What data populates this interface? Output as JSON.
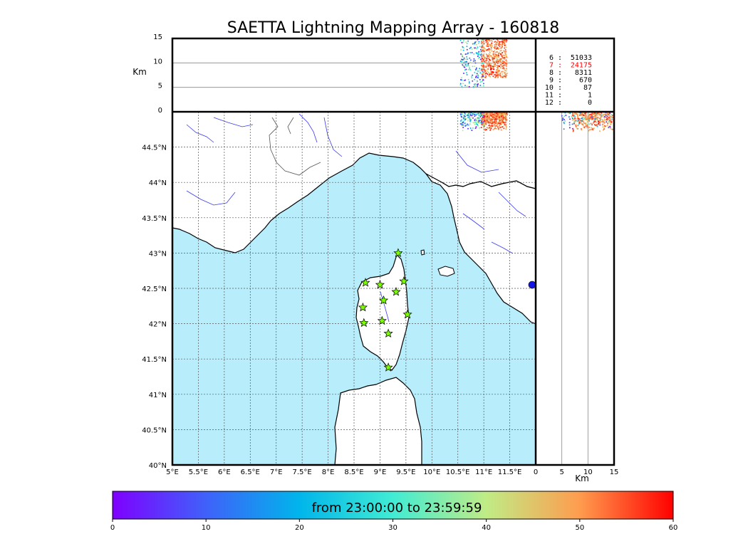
{
  "title": "SAETTA Lightning Mapping Array - 160818",
  "colors": {
    "sea": "#b8eefb",
    "land": "#ffffff",
    "coast": "#000000",
    "rivers": "#3a3af0",
    "borders": "#555555",
    "stations": "#7cfc00",
    "grid": "#555555"
  },
  "colorbar": {
    "label": "from 23:00:00 to 23:59:59",
    "ticks": [
      "0",
      "10",
      "20",
      "30",
      "40",
      "50",
      "60"
    ],
    "colors": [
      "#7f00ff",
      "#3f61fa",
      "#00b5eb",
      "#40ecd4",
      "#c0ec86",
      "#ff9c4e",
      "#ff0000"
    ]
  },
  "counts": [
    {
      "label": "6 :",
      "value": "51033",
      "color": "#000000"
    },
    {
      "label": "7 :",
      "value": "24175",
      "color": "#ff0000"
    },
    {
      "label": "8 :",
      "value": "8311",
      "color": "#000000"
    },
    {
      "label": "9 :",
      "value": "670",
      "color": "#000000"
    },
    {
      "label": "10 :",
      "value": "87",
      "color": "#000000"
    },
    {
      "label": "11 :",
      "value": "1",
      "color": "#000000"
    },
    {
      "label": "12 :",
      "value": "0",
      "color": "#000000"
    }
  ],
  "chart_data": [
    {
      "panel": "plan-view map",
      "type": "scatter",
      "xlim": [
        5.0,
        12.0
      ],
      "ylim": [
        40.0,
        45.0
      ],
      "x_ticks": [
        "5°E",
        "5.5°E",
        "6°E",
        "6.5°E",
        "7°E",
        "7.5°E",
        "8°E",
        "8.5°E",
        "9°E",
        "9.5°E",
        "10°E",
        "10.5°E",
        "11°E",
        "11.5°E"
      ],
      "y_ticks": [
        "40°N",
        "40.5°N",
        "41°N",
        "41.5°N",
        "42°N",
        "42.5°N",
        "43°N",
        "43.5°N",
        "44°N",
        "44.5°N"
      ],
      "grid": true,
      "stations": [
        {
          "lon": 9.35,
          "lat": 43.0
        },
        {
          "lon": 8.72,
          "lat": 42.58
        },
        {
          "lon": 9.0,
          "lat": 42.55
        },
        {
          "lon": 9.46,
          "lat": 42.6
        },
        {
          "lon": 9.31,
          "lat": 42.45
        },
        {
          "lon": 9.07,
          "lat": 42.33
        },
        {
          "lon": 8.67,
          "lat": 42.23
        },
        {
          "lon": 9.53,
          "lat": 42.13
        },
        {
          "lon": 9.04,
          "lat": 42.04
        },
        {
          "lon": 8.69,
          "lat": 42.01
        },
        {
          "lon": 9.16,
          "lat": 41.86
        },
        {
          "lon": 9.16,
          "lat": 41.38
        }
      ],
      "lightning_cluster": {
        "lon_range": [
          10.6,
          11.5
        ],
        "lat_range": [
          44.75,
          45.0
        ],
        "time_range_min": [
          0,
          60
        ]
      }
    },
    {
      "panel": "altitude vs longitude",
      "type": "scatter",
      "ylabel": "Km",
      "ylim": [
        0,
        15
      ],
      "y_ticks": [
        "0",
        "5",
        "10",
        "15"
      ],
      "cluster": {
        "lon_range": [
          10.5,
          11.5
        ],
        "alt_range_km": [
          6,
          15
        ]
      }
    },
    {
      "panel": "latitude vs altitude",
      "type": "scatter",
      "xlabel": "Km",
      "xlim": [
        0,
        15
      ],
      "x_ticks": [
        "0",
        "5",
        "10",
        "15"
      ],
      "cluster": {
        "alt_range_km": [
          6,
          15
        ],
        "lat_range": [
          44.7,
          45.0
        ]
      }
    }
  ]
}
